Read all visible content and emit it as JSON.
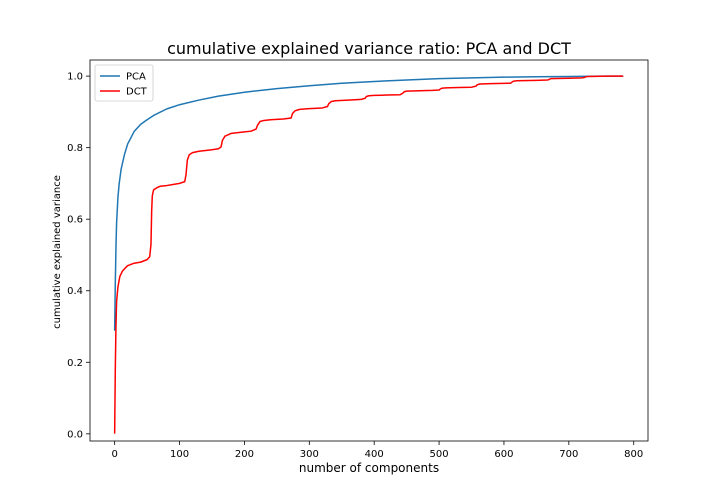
{
  "chart_data": {
    "type": "line",
    "title": "cumulative explained variance ratio: PCA and DCT",
    "xlabel": "number of components",
    "ylabel": "cumulative explained variance",
    "xlim": [
      -38,
      822
    ],
    "ylim": [
      -0.02,
      1.045
    ],
    "xticks": [
      0,
      100,
      200,
      300,
      400,
      500,
      600,
      700,
      800
    ],
    "xtick_labels": [
      "0",
      "100",
      "200",
      "300",
      "400",
      "500",
      "600",
      "700",
      "800"
    ],
    "yticks": [
      0.0,
      0.2,
      0.4,
      0.6,
      0.8,
      1.0
    ],
    "ytick_labels": [
      "0.0",
      "0.2",
      "0.4",
      "0.6",
      "0.8",
      "1.0"
    ],
    "legend_position": "top-left",
    "grid": false,
    "series": [
      {
        "name": "PCA",
        "color": "#1f77b4",
        "x": [
          0,
          1,
          2,
          3,
          5,
          7,
          10,
          15,
          20,
          30,
          40,
          50,
          60,
          80,
          100,
          130,
          160,
          200,
          250,
          300,
          350,
          400,
          450,
          500,
          550,
          600,
          650,
          700,
          750,
          783
        ],
        "y": [
          0.29,
          0.42,
          0.52,
          0.59,
          0.66,
          0.7,
          0.74,
          0.78,
          0.81,
          0.845,
          0.865,
          0.878,
          0.89,
          0.908,
          0.92,
          0.933,
          0.944,
          0.955,
          0.965,
          0.973,
          0.98,
          0.985,
          0.989,
          0.993,
          0.995,
          0.997,
          0.998,
          0.999,
          1.0,
          1.0
        ]
      },
      {
        "name": "DCT",
        "color": "#ff0000",
        "x": [
          0,
          1,
          2,
          3,
          5,
          8,
          12,
          16,
          20,
          30,
          40,
          50,
          54,
          56,
          57,
          58,
          60,
          65,
          70,
          80,
          90,
          100,
          108,
          110,
          112,
          115,
          120,
          130,
          140,
          150,
          160,
          164,
          166,
          170,
          180,
          190,
          200,
          210,
          218,
          220,
          224,
          230,
          240,
          260,
          272,
          274,
          278,
          285,
          300,
          320,
          328,
          330,
          334,
          340,
          360,
          380,
          386,
          388,
          392,
          400,
          420,
          440,
          444,
          446,
          450,
          470,
          490,
          500,
          502,
          504,
          510,
          530,
          550,
          557,
          559,
          563,
          580,
          610,
          613,
          615,
          620,
          650,
          667,
          669,
          672,
          700,
          720,
          724,
          726,
          730,
          760,
          783
        ],
        "y": [
          0.002,
          0.18,
          0.3,
          0.37,
          0.41,
          0.44,
          0.455,
          0.463,
          0.47,
          0.477,
          0.48,
          0.487,
          0.495,
          0.53,
          0.62,
          0.665,
          0.682,
          0.688,
          0.692,
          0.694,
          0.697,
          0.7,
          0.705,
          0.725,
          0.765,
          0.78,
          0.786,
          0.79,
          0.792,
          0.794,
          0.797,
          0.802,
          0.82,
          0.832,
          0.84,
          0.842,
          0.844,
          0.846,
          0.852,
          0.862,
          0.873,
          0.876,
          0.878,
          0.88,
          0.883,
          0.895,
          0.903,
          0.907,
          0.909,
          0.911,
          0.915,
          0.923,
          0.929,
          0.931,
          0.933,
          0.935,
          0.938,
          0.943,
          0.945,
          0.946,
          0.947,
          0.948,
          0.952,
          0.956,
          0.958,
          0.959,
          0.96,
          0.961,
          0.964,
          0.966,
          0.967,
          0.968,
          0.969,
          0.972,
          0.976,
          0.978,
          0.979,
          0.98,
          0.984,
          0.986,
          0.987,
          0.988,
          0.989,
          0.99,
          0.993,
          0.994,
          0.995,
          0.996,
          0.998,
          0.999,
          1.0,
          1.0
        ]
      }
    ]
  }
}
